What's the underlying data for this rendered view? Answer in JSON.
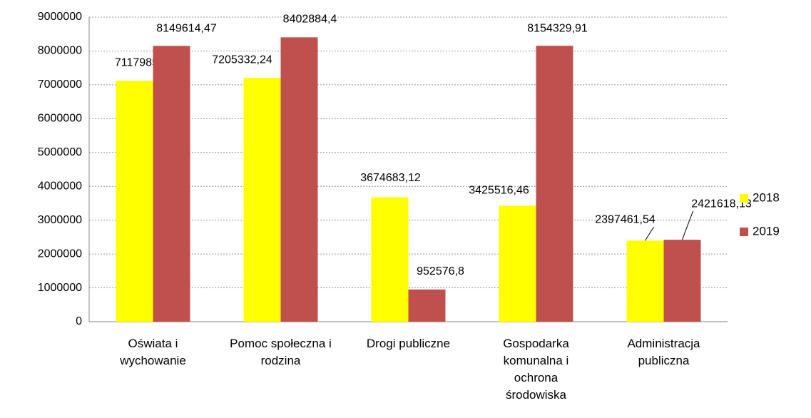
{
  "chart_data": {
    "type": "bar",
    "categories": [
      "Oświata i wychowanie",
      "Pomoc społeczna i rodzina",
      "Drogi publiczne",
      "Gospodarka komunalna i ochrona środowiska",
      "Administracja publiczna"
    ],
    "series": [
      {
        "name": "2018",
        "color": "#ffff00",
        "values": [
          7117985.82,
          7205332.24,
          3674683.12,
          3425516.46,
          2397461.54
        ],
        "value_labels": [
          "7117985,82",
          "7205332,24",
          "3674683,12",
          "3425516,46",
          "2397461,54"
        ]
      },
      {
        "name": "2019",
        "color": "#c0504d",
        "values": [
          8149614.47,
          8402884.4,
          952576.8,
          8154329.91,
          2421618.13
        ],
        "value_labels": [
          "8149614,47",
          "8402884,4",
          "952576,8",
          "8154329,91",
          "2421618,13"
        ]
      }
    ],
    "ylim": [
      0,
      9000000
    ],
    "yticks": [
      0,
      1000000,
      2000000,
      3000000,
      4000000,
      5000000,
      6000000,
      7000000,
      8000000,
      9000000
    ],
    "grid": true,
    "legend": "right"
  }
}
